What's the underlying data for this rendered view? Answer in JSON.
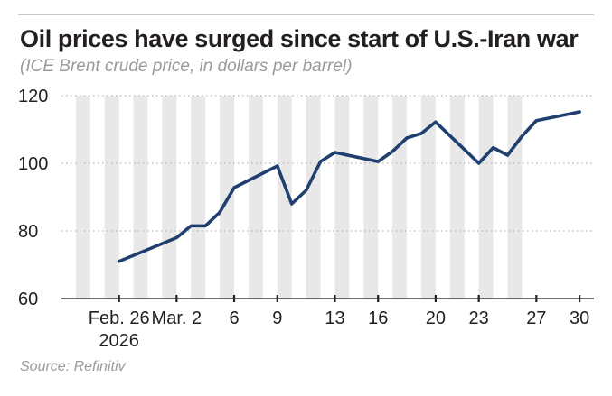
{
  "chart_data": {
    "type": "line",
    "title": "Oil prices have surged since start of U.S.-Iran war",
    "subtitle": "(ICE Brent crude price, in dollars per barrel)",
    "source": "Source: Refinitiv",
    "xlabel": "",
    "ylabel": "",
    "ylim": [
      60,
      120
    ],
    "yticks": [
      60,
      80,
      100,
      120
    ],
    "grid": "horizontal dotted",
    "colors": {
      "line": "#1f3f6e",
      "shade": "#e8e8e8",
      "axis": "#231f20",
      "grid": "#b5b5b5"
    },
    "x_day_range": [
      -1,
      36
    ],
    "shaded_day_ranges": [
      [
        0,
        1
      ],
      [
        2,
        3
      ],
      [
        4,
        5
      ],
      [
        6,
        7
      ],
      [
        8,
        9
      ],
      [
        10,
        11
      ],
      [
        12,
        13
      ],
      [
        14,
        15
      ],
      [
        16,
        17
      ],
      [
        18,
        19
      ],
      [
        20,
        21
      ],
      [
        22,
        23
      ],
      [
        24,
        25
      ],
      [
        26,
        27
      ],
      [
        28,
        29
      ],
      [
        30,
        31
      ]
    ],
    "x_ticks": [
      {
        "day": 3,
        "label": "Feb. 26",
        "label2": "2026"
      },
      {
        "day": 7,
        "label": "Mar. 2"
      },
      {
        "day": 11,
        "label": "6"
      },
      {
        "day": 14,
        "label": "9"
      },
      {
        "day": 18,
        "label": "13"
      },
      {
        "day": 21,
        "label": "16"
      },
      {
        "day": 25,
        "label": "20"
      },
      {
        "day": 28,
        "label": "23"
      },
      {
        "day": 32,
        "label": "27"
      },
      {
        "day": 35,
        "label": "30"
      }
    ],
    "series": [
      {
        "name": "ICE Brent crude price",
        "points": [
          [
            3,
            71.0
          ],
          [
            7,
            78.0
          ],
          [
            8,
            81.5
          ],
          [
            9,
            81.5
          ],
          [
            10,
            85.5
          ],
          [
            11,
            92.8
          ],
          [
            14,
            99.2
          ],
          [
            15,
            88.0
          ],
          [
            16,
            92.0
          ],
          [
            17,
            100.5
          ],
          [
            18,
            103.2
          ],
          [
            21,
            100.5
          ],
          [
            22,
            103.5
          ],
          [
            23,
            107.5
          ],
          [
            24,
            108.8
          ],
          [
            25,
            112.2
          ],
          [
            28,
            100.0
          ],
          [
            29,
            104.6
          ],
          [
            30,
            102.4
          ],
          [
            31,
            108.0
          ],
          [
            32,
            112.6
          ],
          [
            35,
            115.2
          ]
        ]
      }
    ]
  }
}
